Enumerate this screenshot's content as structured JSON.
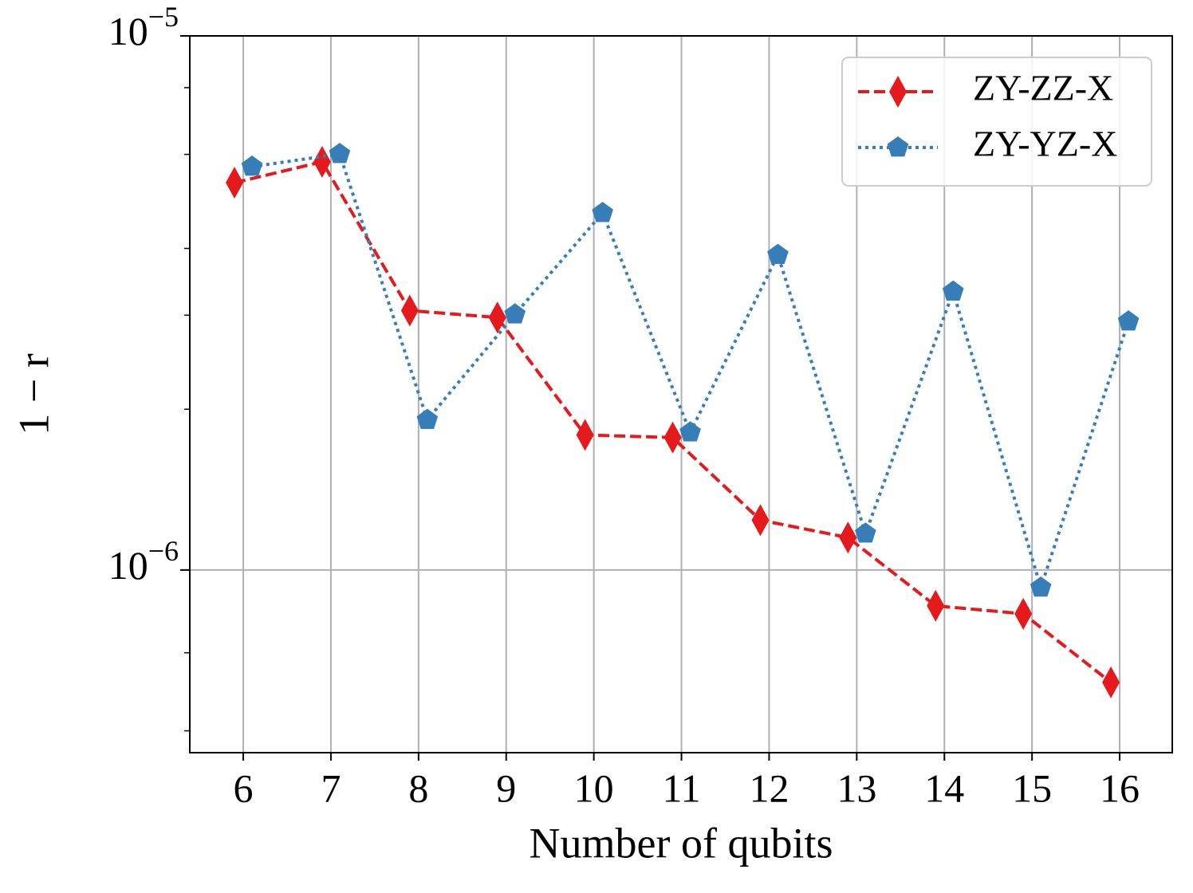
{
  "chart_data": {
    "type": "line",
    "x_label": "Number of qubits",
    "y_label": "1 − r",
    "xlim": [
      5.39,
      16.6
    ],
    "xticks": [
      6,
      7,
      8,
      9,
      10,
      11,
      12,
      13,
      14,
      15,
      16
    ],
    "ylim": [
      4.55e-07,
      1e-05
    ],
    "log_y": true,
    "yticks": [
      {
        "value": 1e-06,
        "label": "10^−6"
      },
      {
        "value": 1e-05,
        "label": "10^−5"
      }
    ],
    "minor_yticks": [
      5e-07,
      7e-07,
      2e-06,
      3e-06,
      4e-06,
      6e-06,
      8e-06
    ],
    "grid": true,
    "legend": "upper right",
    "series": [
      {
        "name": "ZY-ZZ-X",
        "color": "#e41a1c",
        "linestyle": "dashed",
        "marker": "diamond",
        "x": [
          5.9,
          6.9,
          7.9,
          8.9,
          9.9,
          10.9,
          11.9,
          12.9,
          13.9,
          14.9,
          15.9
        ],
        "values": [
          5.31e-06,
          5.81e-06,
          3.06e-06,
          2.97e-06,
          1.79e-06,
          1.77e-06,
          1.24e-06,
          1.15e-06,
          8.57e-07,
          8.28e-07,
          6.16e-07
        ]
      },
      {
        "name": "ZY-YZ-X",
        "color": "#377eb8",
        "linestyle": "dotted",
        "marker": "pentagon",
        "x": [
          6.1,
          7.1,
          8.1,
          9.1,
          10.1,
          11.1,
          12.1,
          13.1,
          14.1,
          15.1,
          16.1
        ],
        "values": [
          5.69e-06,
          6.01e-06,
          1.91e-06,
          3.01e-06,
          4.66e-06,
          1.81e-06,
          3.89e-06,
          1.17e-06,
          3.32e-06,
          9.27e-07,
          2.92e-06
        ]
      }
    ]
  }
}
